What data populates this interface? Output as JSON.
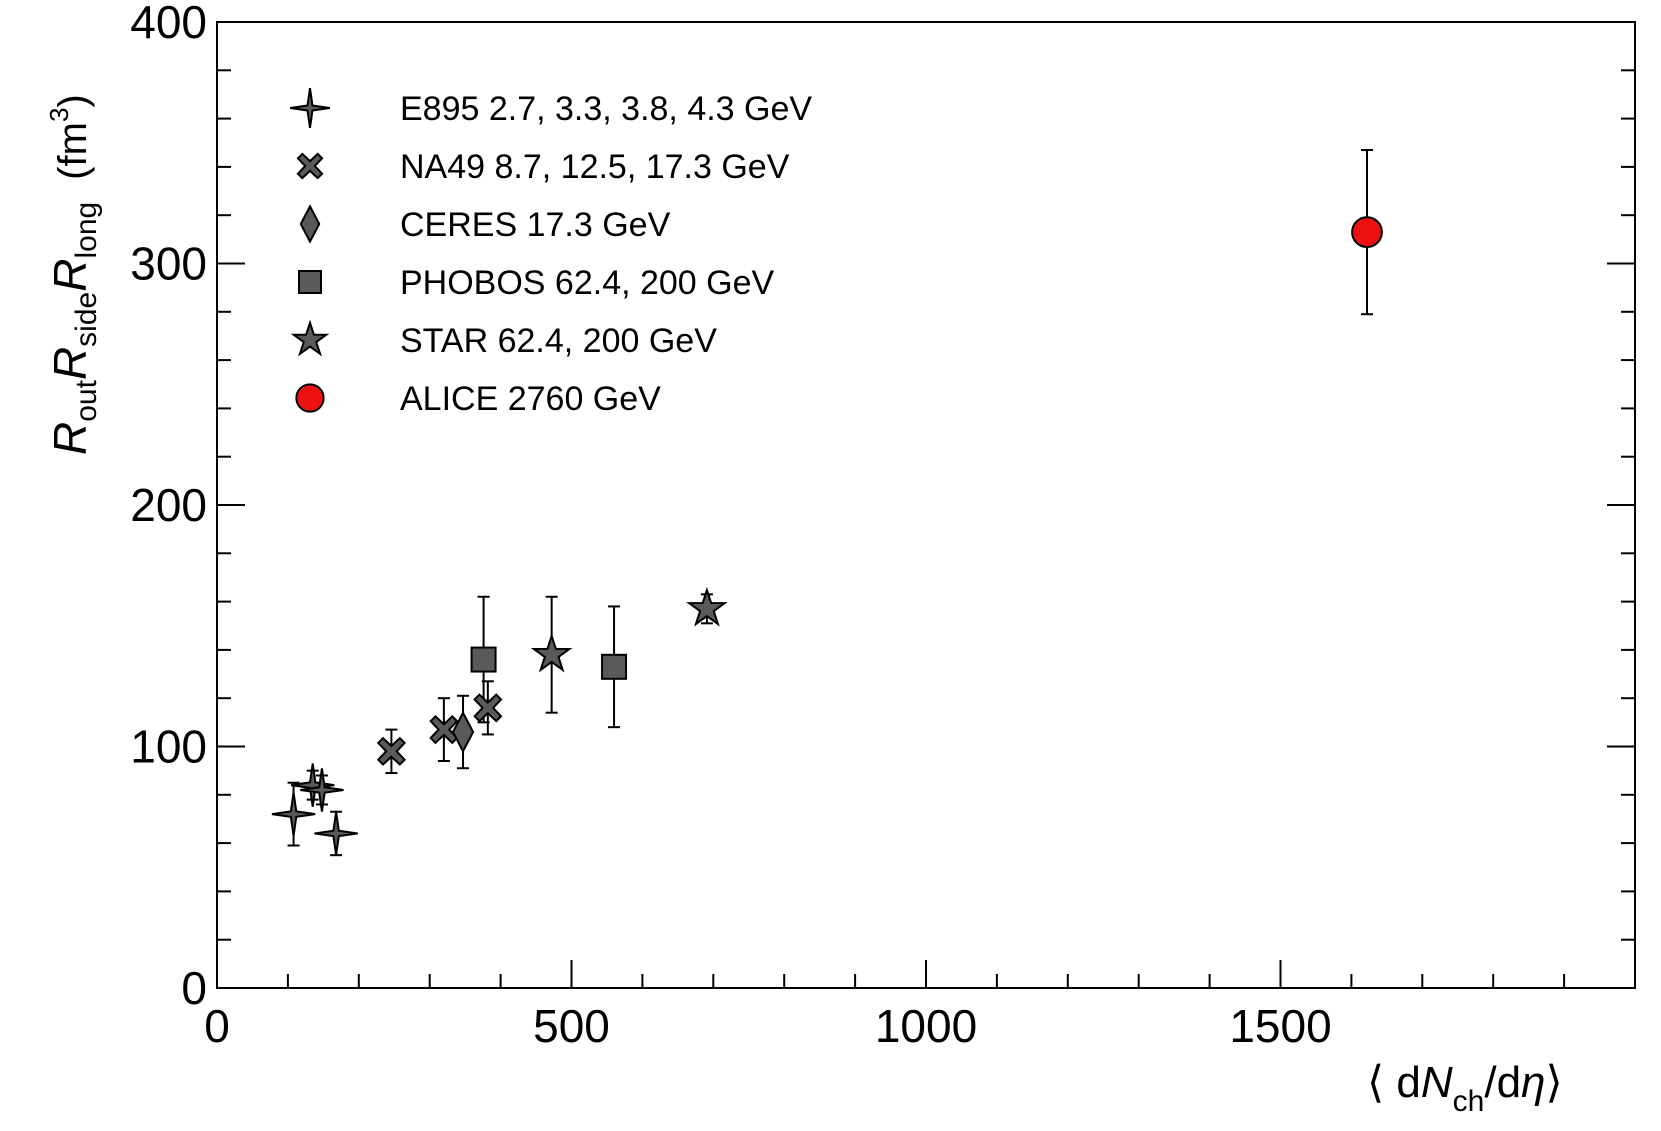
{
  "chart_data": {
    "type": "scatter",
    "title": "",
    "xlabel": "⟨ dN_ch/dη⟩",
    "xlabel_parts": {
      "open": "⟨ d",
      "N": "N",
      "sub": "ch",
      "rest": "/d",
      "eta": "η",
      "close": "⟩"
    },
    "ylabel": "R_out R_side R_long (fm^3)",
    "ylabel_parts": {
      "R": "R",
      "out": "out",
      "side": "side",
      "long": "long",
      "unit_open": "(fm",
      "unit_exp": "3",
      "unit_close": ")"
    },
    "xlim": [
      0,
      2000
    ],
    "ylim": [
      0,
      400
    ],
    "x_ticks": [
      {
        "value": 0,
        "label": "0"
      },
      {
        "value": 500,
        "label": "500"
      },
      {
        "value": 1000,
        "label": "1000"
      },
      {
        "value": 1500,
        "label": "1500"
      }
    ],
    "y_ticks": [
      {
        "value": 0,
        "label": "0"
      },
      {
        "value": 100,
        "label": "100"
      },
      {
        "value": 200,
        "label": "200"
      },
      {
        "value": 300,
        "label": "300"
      },
      {
        "value": 400,
        "label": "400"
      }
    ],
    "x_minor_step": 100,
    "y_minor_step": 20,
    "legend_position": "top-left",
    "series": [
      {
        "name": "E895 2.7, 3.3, 3.8, 4.3 GeV",
        "marker": "four-point-star",
        "color": "#5a5a5a",
        "points": [
          {
            "x": 108,
            "y": 72,
            "err": 13
          },
          {
            "x": 135,
            "y": 84,
            "err": 6
          },
          {
            "x": 148,
            "y": 82,
            "err": 6
          },
          {
            "x": 168,
            "y": 64,
            "err": 9
          }
        ]
      },
      {
        "name": "NA49 8.7, 12.5, 17.3 GeV",
        "marker": "x-cross",
        "color": "#5a5a5a",
        "points": [
          {
            "x": 246,
            "y": 98,
            "err": 9
          },
          {
            "x": 320,
            "y": 107,
            "err": 13
          },
          {
            "x": 382,
            "y": 116,
            "err": 11
          }
        ]
      },
      {
        "name": "CERES 17.3 GeV",
        "marker": "diamond",
        "color": "#5a5a5a",
        "points": [
          {
            "x": 347,
            "y": 106,
            "err": 15
          }
        ]
      },
      {
        "name": "PHOBOS 62.4, 200 GeV",
        "marker": "square",
        "color": "#5a5a5a",
        "points": [
          {
            "x": 376,
            "y": 136,
            "err": 26
          },
          {
            "x": 560,
            "y": 133,
            "err": 25
          }
        ]
      },
      {
        "name": "STAR 62.4, 200 GeV",
        "marker": "star",
        "color": "#5a5a5a",
        "points": [
          {
            "x": 472,
            "y": 138,
            "err": 24
          },
          {
            "x": 691,
            "y": 157,
            "err": 6
          }
        ]
      },
      {
        "name": "ALICE 2760 GeV",
        "marker": "circle",
        "color": "#ee1111",
        "points": [
          {
            "x": 1622,
            "y": 313,
            "err": 34
          }
        ]
      }
    ]
  }
}
